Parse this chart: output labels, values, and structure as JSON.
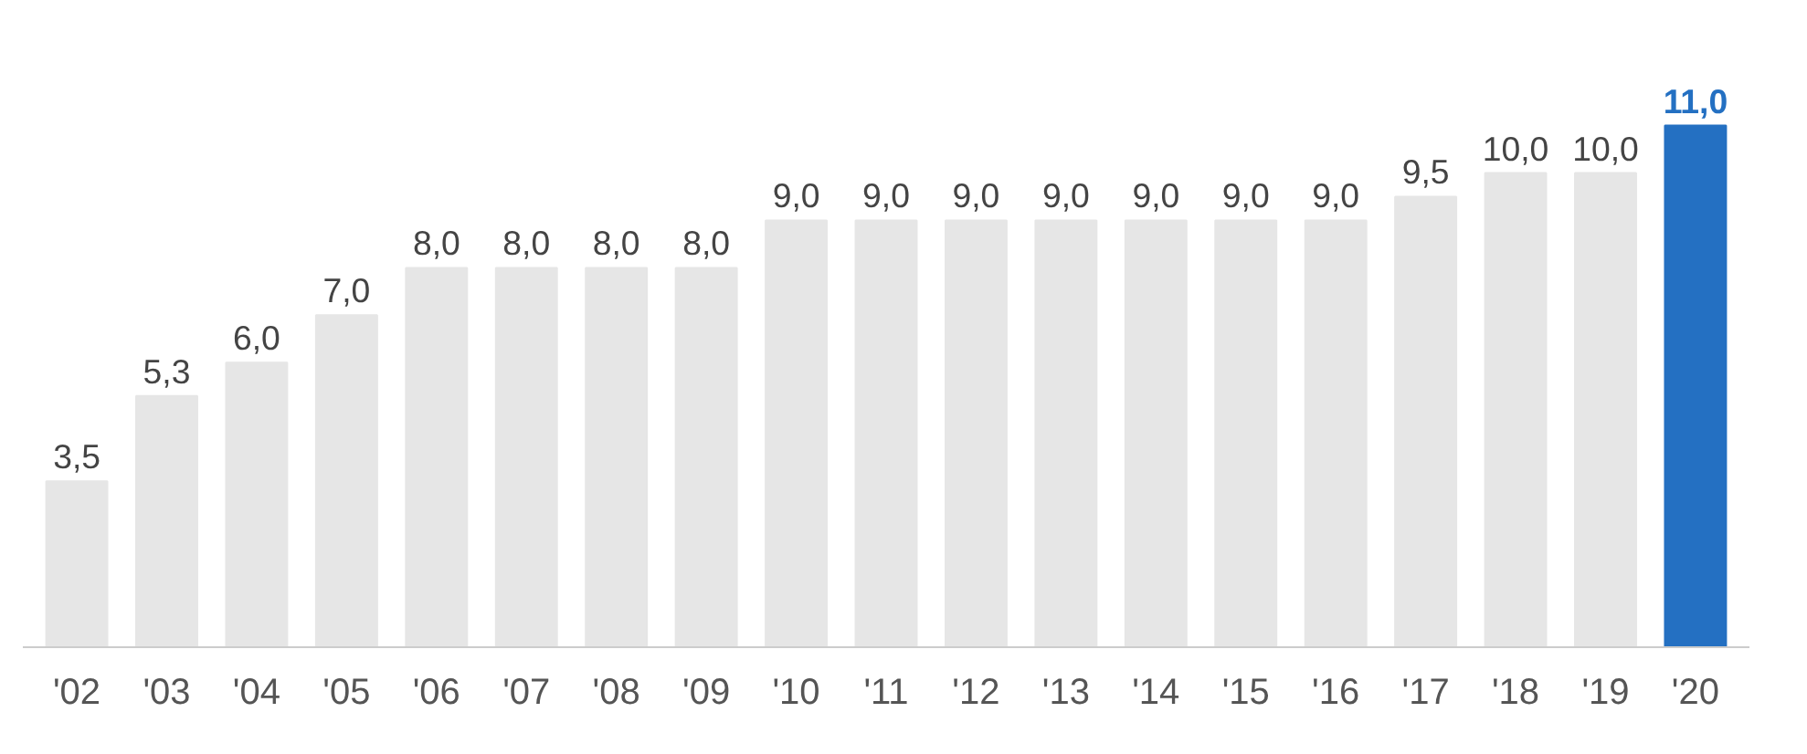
{
  "chart_data": {
    "type": "bar",
    "categories": [
      "'02",
      "'03",
      "'04",
      "'05",
      "'06",
      "'07",
      "'08",
      "'09",
      "'10",
      "'11",
      "'12",
      "'13",
      "'14",
      "'15",
      "'16",
      "'17",
      "'18",
      "'19",
      "'20"
    ],
    "values": [
      3.5,
      5.3,
      6.0,
      7.0,
      8.0,
      8.0,
      8.0,
      8.0,
      9.0,
      9.0,
      9.0,
      9.0,
      9.0,
      9.0,
      9.0,
      9.5,
      10.0,
      10.0,
      11.0
    ],
    "value_labels": [
      "3,5",
      "5,3",
      "6,0",
      "7,0",
      "8,0",
      "8,0",
      "8,0",
      "8,0",
      "9,0",
      "9,0",
      "9,0",
      "9,0",
      "9,0",
      "9,0",
      "9,0",
      "9,5",
      "10,0",
      "10,0",
      "11,0"
    ],
    "colors": [
      "#e6e6e6",
      "#e6e6e6",
      "#e6e6e6",
      "#e6e6e6",
      "#e6e6e6",
      "#e6e6e6",
      "#e6e6e6",
      "#e6e6e6",
      "#e6e6e6",
      "#e6e6e6",
      "#e6e6e6",
      "#e6e6e6",
      "#e6e6e6",
      "#e6e6e6",
      "#e6e6e6",
      "#e6e6e6",
      "#e6e6e6",
      "#e6e6e6",
      "#2470c2"
    ],
    "grid": false
  }
}
